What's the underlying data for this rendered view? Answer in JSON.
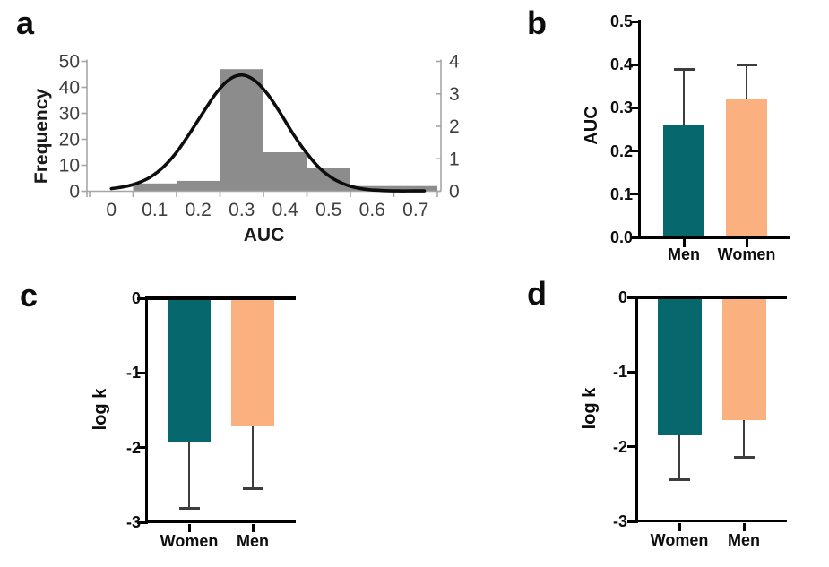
{
  "figure": {
    "panels": [
      {
        "id": "a",
        "label": "a"
      },
      {
        "id": "b",
        "label": "b"
      },
      {
        "id": "c",
        "label": "c"
      },
      {
        "id": "d",
        "label": "d"
      }
    ]
  },
  "colors": {
    "teal": "#06686d",
    "orange": "#fbb080",
    "histogram_gray": "#8c8c8c",
    "excel_axis_gray": "#a6a6a6",
    "excel_text_gray": "#3f3f3f",
    "prism_axis_black": "#000000",
    "error_bar": "#3d3d3d",
    "curve_black": "#0d0d0d"
  },
  "chart_data": [
    {
      "panel": "a",
      "type": "histogram",
      "title": "",
      "xlabel": "AUC",
      "ylabel": "Frequency",
      "categories": [
        "0",
        "0.1",
        "0.2",
        "0.3",
        "0.4",
        "0.5",
        "0.6",
        "0.7"
      ],
      "frequencies": [
        0,
        3,
        4,
        47,
        15,
        9,
        2,
        2
      ],
      "bin_width": 0.1,
      "ylim_left": [
        0,
        50
      ],
      "yticks_left": [
        0,
        10,
        20,
        30,
        40,
        50
      ],
      "ylim_right": [
        0,
        4
      ],
      "yticks_right": [
        0,
        1,
        2,
        3,
        4
      ],
      "bar_color": "#8c8c8c",
      "grid": false,
      "legend": false,
      "density_curve": {
        "axis": "right",
        "color": "#0d0d0d",
        "x": [
          0.0,
          0.03,
          0.06,
          0.09,
          0.12,
          0.15,
          0.18,
          0.21,
          0.24,
          0.27,
          0.3,
          0.33,
          0.36,
          0.39,
          0.42,
          0.45,
          0.48,
          0.51,
          0.54,
          0.57,
          0.6,
          0.63,
          0.66,
          0.69,
          0.72
        ],
        "y": [
          0.08,
          0.14,
          0.25,
          0.44,
          0.75,
          1.2,
          1.78,
          2.4,
          3.0,
          3.43,
          3.58,
          3.41,
          2.98,
          2.38,
          1.73,
          1.16,
          0.7,
          0.39,
          0.2,
          0.09,
          0.04,
          0.02,
          0.01,
          0.01,
          0.01
        ]
      }
    },
    {
      "panel": "b",
      "type": "bar",
      "title": "",
      "xlabel": "",
      "ylabel": "AUC",
      "categories": [
        "Men",
        "Women"
      ],
      "values": [
        0.26,
        0.32
      ],
      "error_tops": [
        0.39,
        0.4
      ],
      "bar_colors": [
        "#06686d",
        "#fbb080"
      ],
      "ylim": [
        0,
        0.5
      ],
      "yticks": [
        "0.0",
        "0.1",
        "0.2",
        "0.3",
        "0.4",
        "0.5"
      ],
      "ytick_values": [
        0,
        0.1,
        0.2,
        0.3,
        0.4,
        0.5
      ],
      "grid": false,
      "legend": false
    },
    {
      "panel": "c",
      "type": "bar",
      "title": "",
      "xlabel": "",
      "ylabel": "log k",
      "categories": [
        "Women",
        "Men"
      ],
      "values": [
        -1.93,
        -1.72
      ],
      "error_ends": [
        -2.81,
        -2.55
      ],
      "bar_colors": [
        "#06686d",
        "#fbb080"
      ],
      "ylim": [
        -3,
        0
      ],
      "yticks": [
        "0",
        "-1",
        "-2",
        "-3"
      ],
      "ytick_values": [
        0,
        -1,
        -2,
        -3
      ],
      "grid": false,
      "legend": false
    },
    {
      "panel": "d",
      "type": "bar",
      "title": "",
      "xlabel": "",
      "ylabel": "log k",
      "categories": [
        "Women",
        "Men"
      ],
      "values": [
        -1.85,
        -1.64
      ],
      "error_ends": [
        -2.44,
        -2.14
      ],
      "bar_colors": [
        "#06686d",
        "#fbb080"
      ],
      "ylim": [
        -3,
        0
      ],
      "yticks": [
        "0",
        "-1",
        "-2",
        "-3"
      ],
      "ytick_values": [
        0,
        -1,
        -2,
        -3
      ],
      "grid": false,
      "legend": false
    }
  ]
}
